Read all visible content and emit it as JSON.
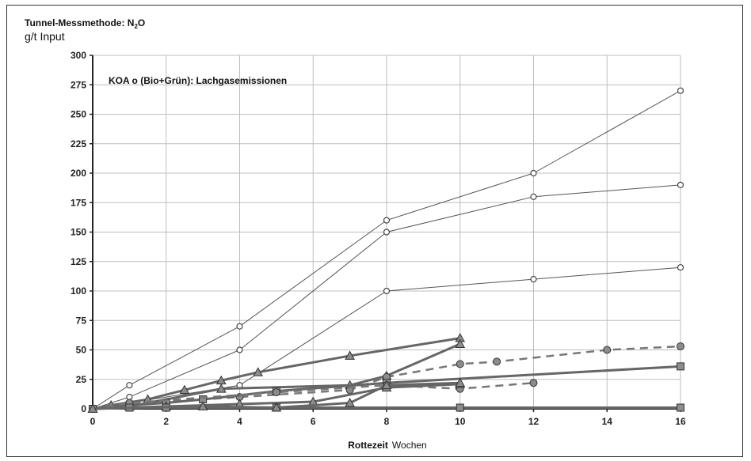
{
  "chart_data": {
    "type": "line",
    "title": "Tunnel-Messmethode: N",
    "title_sub": "2",
    "title_end": "O",
    "ylabel": "g/t Input",
    "annotation": "KOA o (Bio+Grün):  Lachgasemissionen",
    "xlabel_bold": "Rottezeit",
    "xlabel_unit": "Wochen",
    "xlim": [
      0,
      16
    ],
    "ylim": [
      0,
      300
    ],
    "xticks": [
      0,
      2,
      4,
      6,
      8,
      10,
      12,
      14,
      16
    ],
    "yticks": [
      0,
      25,
      50,
      75,
      100,
      125,
      150,
      175,
      200,
      225,
      250,
      275,
      300
    ],
    "grid": true,
    "series": [
      {
        "style": "thin-circle-open",
        "color": "#555555",
        "points": [
          [
            0,
            0
          ],
          [
            1,
            20
          ],
          [
            4,
            70
          ],
          [
            8,
            160
          ],
          [
            12,
            200
          ],
          [
            16,
            270
          ]
        ]
      },
      {
        "style": "thin-circle-open",
        "color": "#555555",
        "points": [
          [
            0,
            0
          ],
          [
            1,
            10
          ],
          [
            4,
            50
          ],
          [
            8,
            150
          ],
          [
            12,
            180
          ],
          [
            16,
            190
          ]
        ]
      },
      {
        "style": "thin-circle-open",
        "color": "#555555",
        "points": [
          [
            0,
            0
          ],
          [
            1,
            5
          ],
          [
            4,
            20
          ],
          [
            8,
            100
          ],
          [
            12,
            110
          ],
          [
            16,
            120
          ]
        ]
      },
      {
        "style": "thick-triangle",
        "color": "#666666",
        "points": [
          [
            0,
            0
          ],
          [
            0.5,
            3
          ],
          [
            1.5,
            8
          ],
          [
            2.5,
            16
          ],
          [
            3.5,
            24
          ],
          [
            4.5,
            31
          ],
          [
            7,
            45
          ],
          [
            10,
            60
          ]
        ]
      },
      {
        "style": "thick-triangle",
        "color": "#666666",
        "points": [
          [
            0,
            0
          ],
          [
            1,
            2
          ],
          [
            3.5,
            17
          ],
          [
            7,
            20
          ],
          [
            8,
            28
          ],
          [
            10,
            55
          ]
        ]
      },
      {
        "style": "dashed-circle",
        "color": "#777777",
        "points": [
          [
            0,
            0
          ],
          [
            1,
            4
          ],
          [
            4,
            10
          ],
          [
            7,
            16
          ],
          [
            8,
            27
          ],
          [
            10,
            38
          ],
          [
            11,
            40
          ],
          [
            14,
            50
          ],
          [
            16,
            53
          ]
        ]
      },
      {
        "style": "thick-square",
        "color": "#666666",
        "points": [
          [
            0,
            0
          ],
          [
            1,
            3
          ],
          [
            2,
            5
          ],
          [
            3,
            8
          ],
          [
            5,
            15
          ],
          [
            8,
            22
          ],
          [
            16,
            36
          ]
        ]
      },
      {
        "style": "dashed-circle",
        "color": "#777777",
        "points": [
          [
            0,
            0
          ],
          [
            1,
            5
          ],
          [
            5,
            14
          ],
          [
            8,
            20
          ],
          [
            10,
            17
          ],
          [
            12,
            22
          ]
        ]
      },
      {
        "style": "thick-triangle",
        "color": "#666666",
        "points": [
          [
            0,
            0
          ],
          [
            2,
            2
          ],
          [
            4,
            4
          ],
          [
            6,
            6
          ],
          [
            8,
            18
          ],
          [
            10,
            21
          ]
        ]
      },
      {
        "style": "thick-square",
        "color": "#666666",
        "points": [
          [
            0,
            0
          ],
          [
            1,
            1
          ],
          [
            2,
            1
          ],
          [
            5,
            1
          ],
          [
            10,
            1
          ],
          [
            16,
            1
          ]
        ]
      },
      {
        "style": "thick-triangle",
        "color": "#666666",
        "points": [
          [
            0,
            0
          ],
          [
            3,
            2
          ],
          [
            5,
            1
          ],
          [
            7,
            5
          ],
          [
            8,
            20
          ],
          [
            10,
            22
          ]
        ]
      }
    ]
  }
}
